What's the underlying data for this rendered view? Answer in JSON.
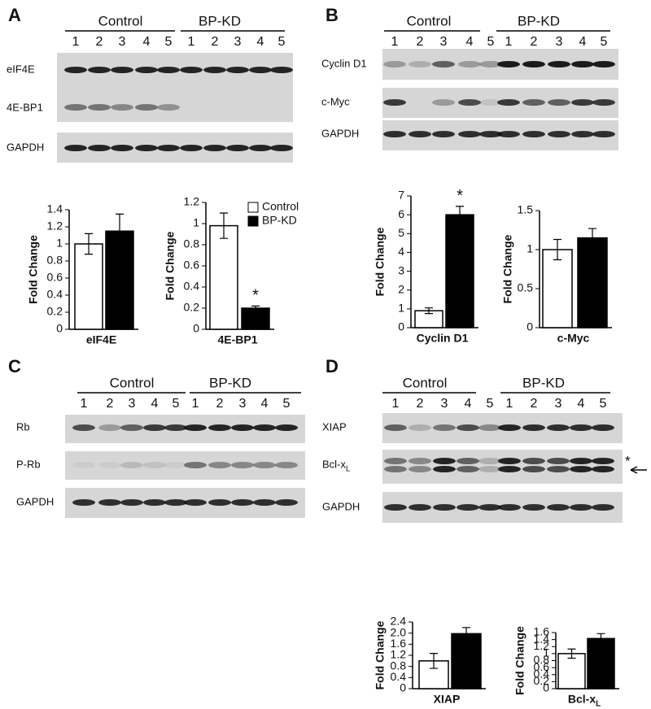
{
  "panels": [
    {
      "label": "A",
      "groups": [
        "Control",
        "BP-KD"
      ],
      "lanes": [
        "1",
        "2",
        "3",
        "4",
        "5",
        "1",
        "2",
        "3",
        "4",
        "5"
      ],
      "blots": [
        {
          "name": "eIF4E"
        },
        {
          "name": "4E-BP1"
        },
        {
          "name": "GAPDH"
        }
      ]
    },
    {
      "label": "B",
      "groups": [
        "Control",
        "BP-KD"
      ],
      "lanes": [
        "1",
        "2",
        "3",
        "4",
        "5",
        "1",
        "2",
        "3",
        "4",
        "5"
      ],
      "blots": [
        {
          "name": "Cyclin D1"
        },
        {
          "name": "c-Myc"
        },
        {
          "name": "GAPDH"
        }
      ]
    },
    {
      "label": "C",
      "groups": [
        "Control",
        "BP-KD"
      ],
      "lanes": [
        "1",
        "2",
        "3",
        "4",
        "5",
        "1",
        "2",
        "3",
        "4",
        "5"
      ],
      "blots": [
        {
          "name": "Rb"
        },
        {
          "name": "P-Rb"
        },
        {
          "name": "GAPDH"
        }
      ]
    },
    {
      "label": "D",
      "groups": [
        "Control",
        "BP-KD"
      ],
      "lanes": [
        "1",
        "2",
        "3",
        "4",
        "5",
        "1",
        "2",
        "3",
        "4",
        "5"
      ],
      "blots": [
        {
          "name": "XIAP"
        },
        {
          "name": "Bcl-x",
          "sub": "L",
          "marker": "*"
        },
        {
          "name": "GAPDH"
        }
      ]
    }
  ],
  "chart_data": [
    {
      "type": "bar",
      "ylabel": "Fold Change",
      "xlabel": "eIF4E",
      "ylim": [
        0,
        1.4
      ],
      "yticks": [
        0,
        0.2,
        0.4,
        0.6,
        0.8,
        1,
        1.2,
        1.4
      ],
      "series": [
        {
          "color": "#ffffff",
          "values": [
            1.0
          ],
          "errors": [
            0.12
          ]
        },
        {
          "color": "#000000",
          "values": [
            1.15
          ],
          "errors": [
            0.2
          ]
        }
      ]
    },
    {
      "type": "bar",
      "ylabel": "Fold Change",
      "xlabel": "4E-BP1",
      "ylim": [
        0,
        1.2
      ],
      "yticks": [
        0,
        0.2,
        0.4,
        0.6,
        0.8,
        1,
        1.2
      ],
      "legend": "upper right",
      "annotation": "*",
      "series": [
        {
          "name": "Control",
          "color": "#ffffff",
          "values": [
            0.98
          ],
          "errors": [
            0.12
          ]
        },
        {
          "name": "BP-KD",
          "color": "#000000",
          "values": [
            0.2
          ],
          "errors": [
            0.02
          ]
        }
      ]
    },
    {
      "type": "bar",
      "ylabel": "Fold Change",
      "xlabel": "Cyclin D1",
      "ylim": [
        0,
        7
      ],
      "yticks": [
        0,
        1,
        2,
        3,
        4,
        5,
        6,
        7
      ],
      "annotation": "*",
      "series": [
        {
          "color": "#ffffff",
          "values": [
            0.9
          ],
          "errors": [
            0.15
          ]
        },
        {
          "color": "#000000",
          "values": [
            6.0
          ],
          "errors": [
            0.45
          ]
        }
      ]
    },
    {
      "type": "bar",
      "ylabel": "Fold Change",
      "xlabel": "c-Myc",
      "ylim": [
        0,
        1.5
      ],
      "yticks": [
        0,
        0.5,
        1,
        1.5
      ],
      "series": [
        {
          "color": "#ffffff",
          "values": [
            1.0
          ],
          "errors": [
            0.13
          ]
        },
        {
          "color": "#000000",
          "values": [
            1.15
          ],
          "errors": [
            0.12
          ]
        }
      ]
    },
    {
      "type": "bar",
      "ylabel": "Fold Change",
      "xlabel": "XIAP",
      "ylim": [
        0,
        2.4
      ],
      "yticks": [
        0,
        0.4,
        0.8,
        1.2,
        1.6,
        {
          "value": 2,
          "label": "2.0"
        },
        2.4
      ],
      "series": [
        {
          "color": "#ffffff",
          "values": [
            1.0
          ],
          "errors": [
            0.27
          ]
        },
        {
          "color": "#000000",
          "values": [
            1.98
          ],
          "errors": [
            0.22
          ]
        }
      ]
    },
    {
      "type": "bar",
      "ylabel": "Fold Change",
      "xlabel": "Bcl-x",
      "xlabel_sub": "L",
      "ylim": [
        0,
        1.6
      ],
      "yticks": [
        0,
        0.2,
        0.4,
        0.6,
        0.8,
        1,
        1.2,
        1.4,
        1.6
      ],
      "series": [
        {
          "color": "#ffffff",
          "values": [
            1.0
          ],
          "errors": [
            0.13
          ]
        },
        {
          "color": "#000000",
          "values": [
            1.43
          ],
          "errors": [
            0.14
          ]
        }
      ]
    }
  ]
}
